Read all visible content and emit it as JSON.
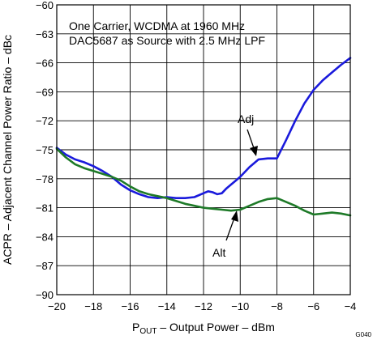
{
  "figure_id": "G040",
  "chart_data": {
    "type": "line",
    "annotation": [
      "One Carrier, WCDMA at 1960 MHz",
      "DAC5687 as Source with 2.5 MHz LPF"
    ],
    "xlabel": {
      "main": "P",
      "sub": "OUT",
      "rest": " – Output Power – dBm"
    },
    "ylabel": "ACPR – Adjacent Channel Power Ratio – dBc",
    "xlim": [
      -20,
      -4
    ],
    "ylim": [
      -90,
      -60
    ],
    "x_ticks": [
      -20,
      -18,
      -16,
      -14,
      -12,
      -10,
      -8,
      -6,
      -4
    ],
    "y_ticks": [
      -60,
      -63,
      -66,
      -69,
      -72,
      -75,
      -78,
      -81,
      -84,
      -87,
      -90
    ],
    "x_tick_labels": [
      "−20",
      "−18",
      "−16",
      "−14",
      "−12",
      "−10",
      "−8",
      "−6",
      "−4"
    ],
    "y_tick_labels": [
      "−60",
      "−63",
      "−66",
      "−69",
      "−72",
      "−75",
      "−78",
      "−81",
      "−84",
      "−87",
      "−90"
    ],
    "grid": true,
    "series": [
      {
        "name": "Adj",
        "color": "#1a1adc",
        "x": [
          -20,
          -19.5,
          -19,
          -18.5,
          -18,
          -17.5,
          -17,
          -16.5,
          -16,
          -15.5,
          -15,
          -14.5,
          -14,
          -13.5,
          -13,
          -12.5,
          -12,
          -11.75,
          -11.5,
          -11.25,
          -11,
          -10.75,
          -10.5,
          -10.25,
          -10,
          -9.5,
          -9,
          -8.5,
          -8,
          -7.5,
          -7,
          -6.5,
          -6,
          -5.5,
          -5,
          -4.5,
          -4
        ],
        "y": [
          -74.8,
          -75.5,
          -76.0,
          -76.3,
          -76.7,
          -77.2,
          -77.8,
          -78.6,
          -79.2,
          -79.6,
          -79.9,
          -80.0,
          -79.9,
          -80.0,
          -80.0,
          -79.9,
          -79.5,
          -79.3,
          -79.4,
          -79.6,
          -79.5,
          -79.0,
          -78.6,
          -78.2,
          -77.8,
          -76.8,
          -76.0,
          -75.9,
          -75.9,
          -74.0,
          -72.0,
          -70.2,
          -68.8,
          -67.8,
          -67.0,
          -66.2,
          -65.5
        ]
      },
      {
        "name": "Alt",
        "color": "#1e7a28",
        "x": [
          -20,
          -19.5,
          -19,
          -18.5,
          -18,
          -17.5,
          -17,
          -16.5,
          -16,
          -15.5,
          -15,
          -14.5,
          -14,
          -13.5,
          -13,
          -12.5,
          -12,
          -11.5,
          -11,
          -10.5,
          -10,
          -9.5,
          -9,
          -8.5,
          -8,
          -7.5,
          -7,
          -6.5,
          -6,
          -5.5,
          -5,
          -4.5,
          -4
        ],
        "y": [
          -74.9,
          -75.8,
          -76.5,
          -76.9,
          -77.2,
          -77.5,
          -77.8,
          -78.2,
          -78.8,
          -79.3,
          -79.6,
          -79.8,
          -80.0,
          -80.3,
          -80.6,
          -80.8,
          -81.0,
          -81.1,
          -81.2,
          -81.3,
          -81.2,
          -80.8,
          -80.4,
          -80.1,
          -80.0,
          -80.4,
          -80.8,
          -81.3,
          -81.7,
          -81.6,
          -81.5,
          -81.6,
          -81.8
        ]
      }
    ],
    "labels": [
      {
        "text": "Adj",
        "series": "Adj"
      },
      {
        "text": "Alt",
        "series": "Alt"
      }
    ]
  }
}
